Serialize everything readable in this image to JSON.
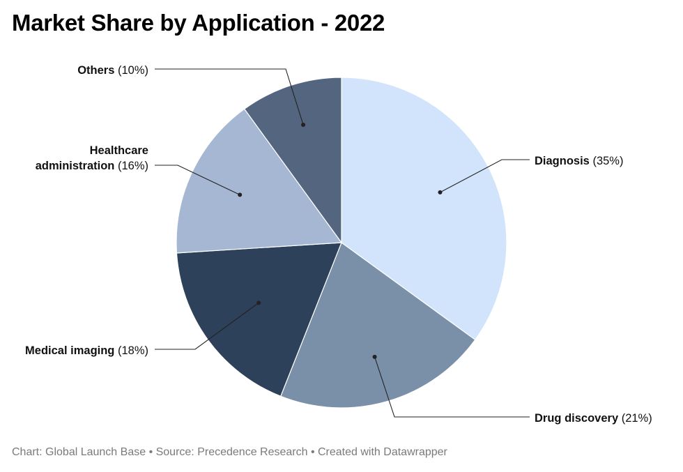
{
  "title": "Market Share by Application - 2022",
  "footer": "Chart: Global Launch Base • Source: Precedence Research • Created with Datawrapper",
  "chart_data": {
    "type": "pie",
    "title": "Market Share by Application - 2022",
    "slices": [
      {
        "label": "Diagnosis",
        "value": 35,
        "display": "(35%)",
        "color": "#d1e4fb"
      },
      {
        "label": "Drug discovery",
        "value": 21,
        "display": "(21%)",
        "color": "#7a8fa8"
      },
      {
        "label": "Medical imaging",
        "value": 18,
        "display": "(18%)",
        "color": "#2e415a"
      },
      {
        "label": "Healthcare administration",
        "label_lines": [
          "Healthcare",
          "administration"
        ],
        "value": 16,
        "display": "(16%)",
        "color": "#a5b7d3"
      },
      {
        "label": "Others",
        "value": 10,
        "display": "(10%)",
        "color": "#53657f"
      }
    ],
    "start_angle_deg": 0,
    "direction": "clockwise",
    "legend": "none, direct labels with leader lines"
  }
}
